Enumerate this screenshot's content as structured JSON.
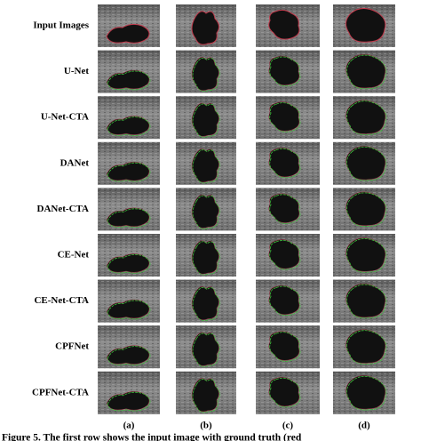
{
  "row_labels": [
    "Input Images",
    "U-Net",
    "U-Net-CTA",
    "DANet",
    "DANet-CTA",
    "CE-Net",
    "CE-Net-CTA",
    "CPFNet",
    "CPFNet-CTA"
  ],
  "column_labels": [
    "(a)",
    "(b)",
    "(c)",
    "(d)"
  ],
  "caption": "Figure 5. The first row shows the input image with ground truth (red"
}
